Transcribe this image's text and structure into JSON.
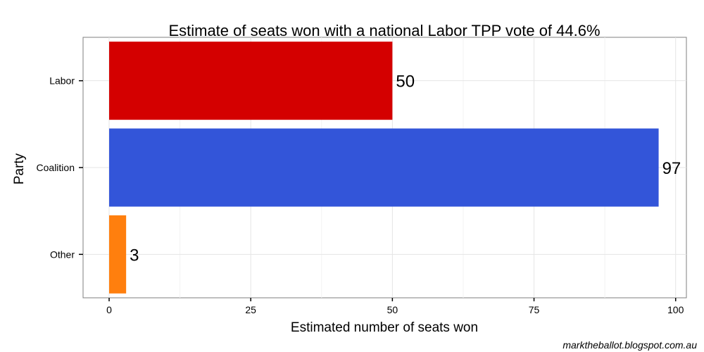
{
  "chart_data": {
    "type": "bar",
    "orientation": "horizontal",
    "title": "Estimate of seats won with a national Labor TPP vote of 44.6%",
    "xlabel": "Estimated number of seats won",
    "ylabel": "Party",
    "categories": [
      "Labor",
      "Coalition",
      "Other"
    ],
    "values": [
      50,
      97,
      3
    ],
    "data_labels": [
      "50",
      "97",
      "3"
    ],
    "colors": [
      "#d40000",
      "#3355d9",
      "#ff7f0e"
    ],
    "xlim": [
      -4.6,
      101.9
    ],
    "xticks": [
      0,
      25,
      50,
      75,
      100
    ],
    "xtick_labels": [
      "0",
      "25",
      "50",
      "75",
      "100"
    ],
    "grid": true
  },
  "caption": "marktheballot.blogspot.com.au"
}
